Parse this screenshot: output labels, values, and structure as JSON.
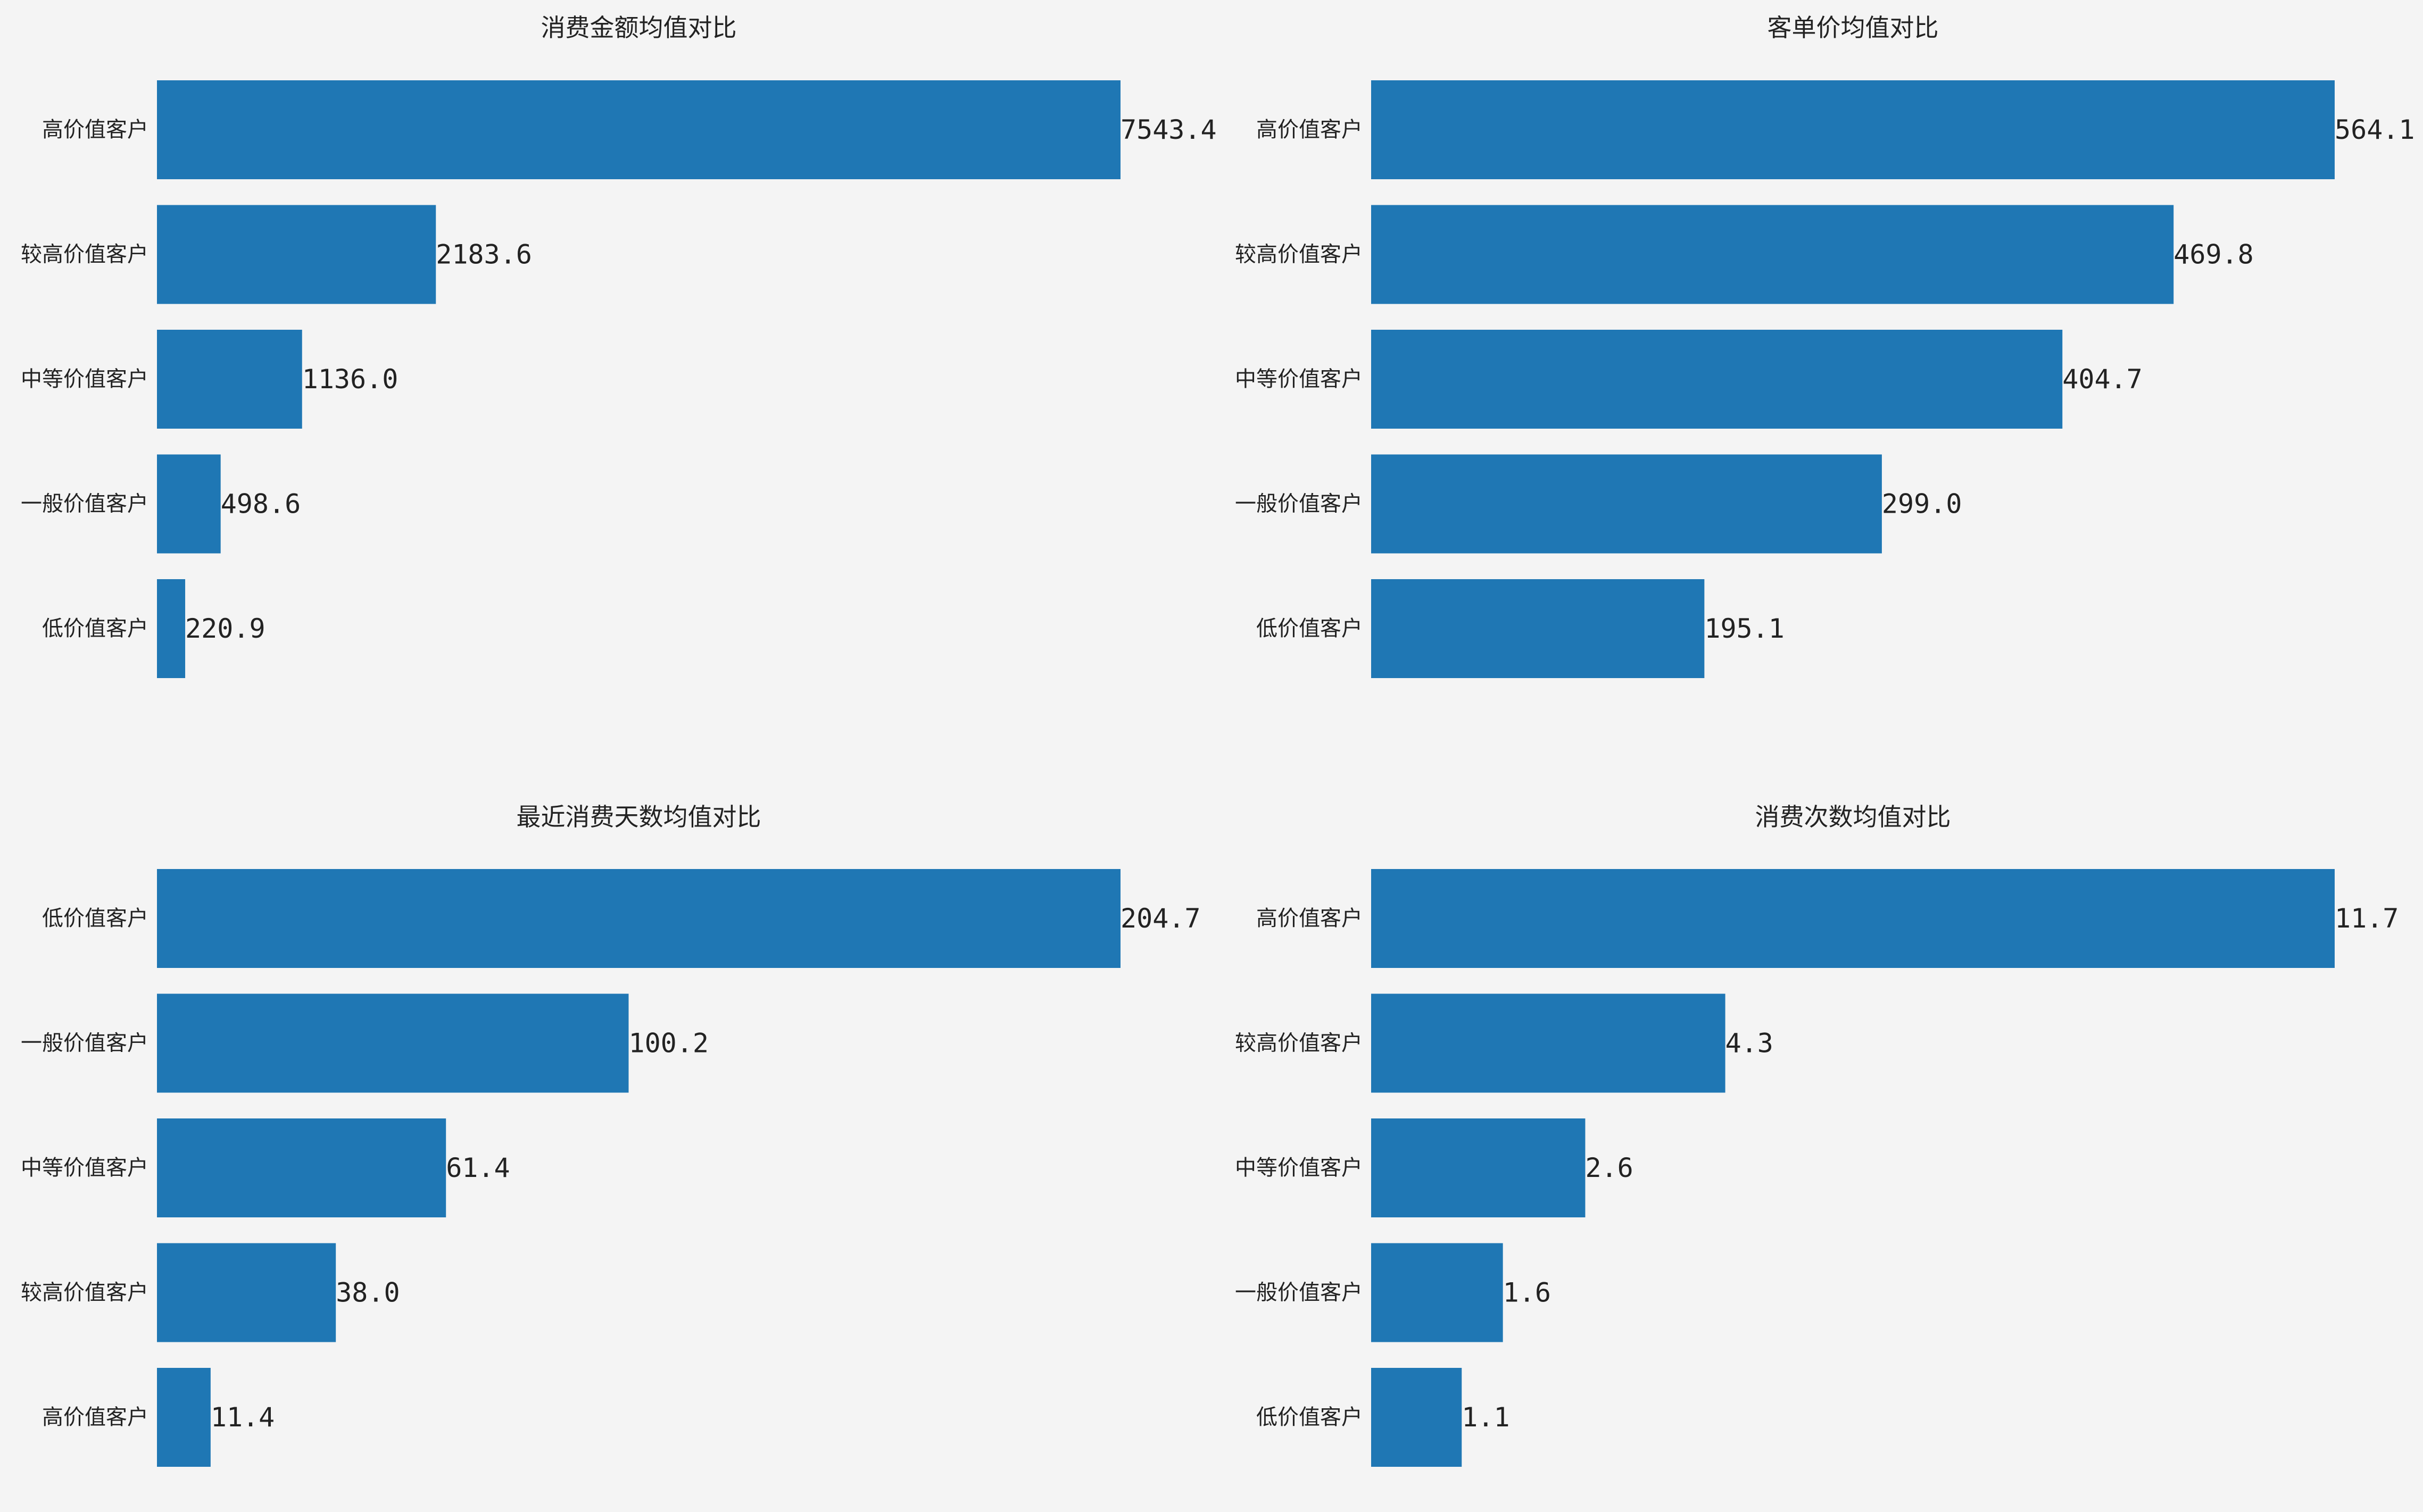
{
  "chart_data": [
    {
      "type": "bar",
      "orientation": "horizontal",
      "title": "消费金额均值对比",
      "categories": [
        "高价值客户",
        "较高价值客户",
        "中等价值客户",
        "一般价值客户",
        "低价值客户"
      ],
      "values": [
        7543.4,
        2183.6,
        1136.0,
        498.6,
        220.9
      ],
      "value_labels": [
        "7543.4",
        "2183.6",
        "1136.0",
        "498.6",
        "220.9"
      ],
      "xlim": [
        0,
        7543.4
      ],
      "grid": false,
      "bar_color": "#1f77b4"
    },
    {
      "type": "bar",
      "orientation": "horizontal",
      "title": "客单价均值对比",
      "categories": [
        "高价值客户",
        "较高价值客户",
        "中等价值客户",
        "一般价值客户",
        "低价值客户"
      ],
      "values": [
        564.1,
        469.8,
        404.7,
        299.0,
        195.1
      ],
      "value_labels": [
        "564.1",
        "469.8",
        "404.7",
        "299.0",
        "195.1"
      ],
      "xlim": [
        0,
        564.1
      ],
      "grid": false,
      "bar_color": "#1f77b4"
    },
    {
      "type": "bar",
      "orientation": "horizontal",
      "title": "最近消费天数均值对比",
      "categories": [
        "低价值客户",
        "一般价值客户",
        "中等价值客户",
        "较高价值客户",
        "高价值客户"
      ],
      "values": [
        204.7,
        100.2,
        61.4,
        38.0,
        11.4
      ],
      "value_labels": [
        "204.7",
        "100.2",
        "61.4",
        "38.0",
        "11.4"
      ],
      "xlim": [
        0,
        204.7
      ],
      "grid": false,
      "bar_color": "#1f77b4"
    },
    {
      "type": "bar",
      "orientation": "horizontal",
      "title": "消费次数均值对比",
      "categories": [
        "高价值客户",
        "较高价值客户",
        "中等价值客户",
        "一般价值客户",
        "低价值客户"
      ],
      "values": [
        11.7,
        4.3,
        2.6,
        1.6,
        1.1
      ],
      "value_labels": [
        "11.7",
        "4.3",
        "2.6",
        "1.6",
        "1.1"
      ],
      "xlim": [
        0,
        11.7
      ],
      "grid": false,
      "bar_color": "#1f77b4"
    }
  ]
}
